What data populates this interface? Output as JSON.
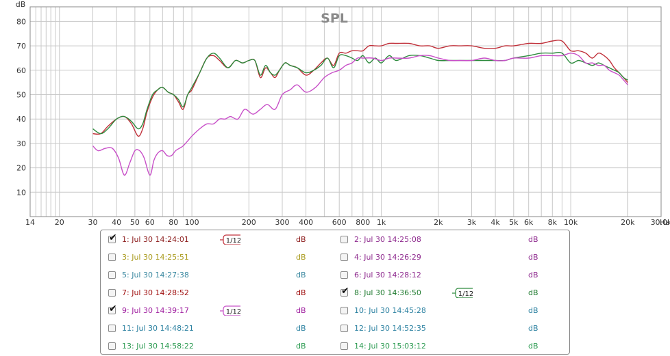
{
  "chart_data": {
    "type": "line",
    "title": "SPL",
    "ylabel": "dB",
    "x_unit_label": "Hz",
    "x_scale": "log",
    "xlim": [
      14,
      30000
    ],
    "ylim": [
      0,
      86
    ],
    "grid": true,
    "y_ticks": [
      10,
      20,
      30,
      40,
      50,
      60,
      70,
      80
    ],
    "x_ticks": [
      {
        "v": 14,
        "label": "14"
      },
      {
        "v": 20,
        "label": "20"
      },
      {
        "v": 30,
        "label": "30"
      },
      {
        "v": 40,
        "label": "40"
      },
      {
        "v": 50,
        "label": "50"
      },
      {
        "v": 60,
        "label": "60"
      },
      {
        "v": 80,
        "label": "80"
      },
      {
        "v": 100,
        "label": "100"
      },
      {
        "v": 200,
        "label": "200"
      },
      {
        "v": 300,
        "label": "300"
      },
      {
        "v": 400,
        "label": "400"
      },
      {
        "v": 600,
        "label": "600"
      },
      {
        "v": 800,
        "label": "800"
      },
      {
        "v": 1000,
        "label": "1k"
      },
      {
        "v": 2000,
        "label": "2k"
      },
      {
        "v": 3000,
        "label": "3k"
      },
      {
        "v": 4000,
        "label": "4k"
      },
      {
        "v": 5000,
        "label": "5k"
      },
      {
        "v": 6000,
        "label": "6k"
      },
      {
        "v": 8000,
        "label": "8k"
      },
      {
        "v": 10000,
        "label": "10k"
      },
      {
        "v": 20000,
        "label": "20k"
      },
      {
        "v": 30000,
        "label": "30.0k"
      }
    ],
    "series": [
      {
        "name": "1: Jul 30 14:24:01",
        "color": "#c0303a",
        "x": [
          30,
          33,
          36,
          40,
          44,
          48,
          52,
          55,
          58,
          62,
          66,
          70,
          75,
          80,
          85,
          90,
          95,
          100,
          110,
          120,
          130,
          140,
          155,
          170,
          185,
          200,
          215,
          230,
          245,
          260,
          275,
          290,
          310,
          330,
          360,
          400,
          440,
          480,
          520,
          560,
          600,
          650,
          700,
          750,
          800,
          860,
          930,
          1000,
          1100,
          1200,
          1400,
          1600,
          1800,
          2000,
          2300,
          2600,
          3000,
          3500,
          4000,
          4500,
          5000,
          6000,
          7000,
          8000,
          9000,
          10000,
          11000,
          12000,
          13000,
          14000,
          15000,
          16000,
          17000,
          18000,
          19000,
          20000
        ],
        "y": [
          34,
          34,
          37,
          40,
          41,
          38,
          33,
          36,
          43,
          49,
          52,
          53,
          51,
          50,
          47,
          44,
          50,
          52,
          59,
          65,
          66,
          64,
          61,
          64,
          63,
          64,
          64,
          57,
          61,
          59,
          57,
          60,
          63,
          62,
          61,
          58,
          60,
          63,
          65,
          62,
          67,
          67,
          68,
          68,
          68,
          70,
          70,
          70,
          71,
          71,
          71,
          70,
          70,
          69,
          70,
          70,
          70,
          69,
          69,
          70,
          70,
          71,
          71,
          72,
          72,
          68,
          68,
          67,
          65,
          67,
          66,
          64,
          61,
          59,
          57,
          55
        ]
      },
      {
        "name": "8: Jul 30 14:36:50",
        "color": "#2e8b3e",
        "x": [
          30,
          33,
          36,
          40,
          44,
          48,
          52,
          55,
          58,
          62,
          66,
          70,
          75,
          80,
          85,
          90,
          95,
          100,
          110,
          120,
          130,
          140,
          155,
          170,
          185,
          200,
          215,
          230,
          245,
          260,
          275,
          290,
          310,
          330,
          360,
          400,
          440,
          480,
          520,
          560,
          600,
          650,
          700,
          750,
          800,
          860,
          930,
          1000,
          1100,
          1200,
          1400,
          1600,
          1800,
          2000,
          2300,
          2600,
          3000,
          3500,
          4000,
          4500,
          5000,
          6000,
          7000,
          8000,
          9000,
          10000,
          11000,
          12000,
          13000,
          14000,
          15000,
          16000,
          17000,
          18000,
          19000,
          20000
        ],
        "y": [
          36,
          34,
          36,
          40,
          41,
          39,
          36,
          38,
          44,
          50,
          52,
          53,
          51,
          50,
          48,
          45,
          50,
          53,
          59,
          65,
          67,
          65,
          61,
          64,
          63,
          64,
          64,
          58,
          62,
          59,
          58,
          60,
          63,
          62,
          61,
          59,
          60,
          62,
          65,
          61,
          66,
          66,
          65,
          64,
          66,
          63,
          65,
          63,
          66,
          64,
          66,
          66,
          65,
          64,
          64,
          64,
          64,
          64,
          64,
          64,
          65,
          66,
          67,
          67,
          67,
          63,
          64,
          63,
          62,
          63,
          62,
          61,
          60,
          59,
          57,
          56
        ]
      },
      {
        "name": "9: Jul 30 14:39:17",
        "color": "#c850c8",
        "x": [
          30,
          32,
          35,
          38,
          41,
          44,
          47,
          50,
          53,
          56,
          60,
          63,
          66,
          70,
          74,
          78,
          82,
          86,
          90,
          95,
          100,
          110,
          120,
          130,
          140,
          150,
          160,
          175,
          190,
          210,
          230,
          250,
          275,
          300,
          330,
          360,
          400,
          450,
          500,
          550,
          600,
          650,
          700,
          750,
          800,
          900,
          1000,
          1100,
          1200,
          1400,
          1600,
          1800,
          2000,
          2300,
          2600,
          3000,
          3500,
          4000,
          4500,
          5000,
          6000,
          7000,
          8000,
          9000,
          10000,
          11000,
          12000,
          13000,
          14000,
          15000,
          16000,
          17000,
          18000,
          19000,
          20000
        ],
        "y": [
          29,
          27,
          28,
          28,
          24,
          17,
          22,
          27,
          27,
          24,
          17,
          23,
          26,
          27,
          25,
          25,
          27,
          28,
          29,
          31,
          33,
          36,
          38,
          38,
          40,
          40,
          41,
          40,
          44,
          42,
          44,
          46,
          44,
          50,
          52,
          54,
          51,
          53,
          57,
          59,
          60,
          62,
          63,
          65,
          65,
          65,
          64,
          65,
          65,
          65,
          66,
          66,
          65,
          64,
          64,
          64,
          65,
          64,
          64,
          65,
          65,
          66,
          66,
          66,
          67,
          66,
          63,
          63,
          62,
          62,
          60,
          59,
          58,
          56,
          54
        ]
      }
    ]
  },
  "legend": [
    {
      "label": "1: Jul 30 14:24:01",
      "unit": "dB",
      "color": "#8b1a1a",
      "checked": true,
      "smoothing": "1/12",
      "smooth_color": "#c0303a"
    },
    {
      "label": "2: Jul 30 14:25:08",
      "unit": "dB",
      "color": "#8e2a8e",
      "checked": false
    },
    {
      "label": "3: Jul 30 14:25:51",
      "unit": "dB",
      "color": "#a99a1c",
      "checked": false
    },
    {
      "label": "4: Jul 30 14:26:29",
      "unit": "dB",
      "color": "#8e2a8e",
      "checked": false
    },
    {
      "label": "5: Jul 30 14:27:38",
      "unit": "dB",
      "color": "#3a88a0",
      "checked": false
    },
    {
      "label": "6: Jul 30 14:28:12",
      "unit": "dB",
      "color": "#8e2a8e",
      "checked": false
    },
    {
      "label": "7: Jul 30 14:28:52",
      "unit": "dB",
      "color": "#a01010",
      "checked": false
    },
    {
      "label": "8: Jul 30 14:36:50",
      "unit": "dB",
      "color": "#1e7a2e",
      "checked": true,
      "smoothing": "1/12",
      "smooth_color": "#2e8b3e"
    },
    {
      "label": "9: Jul 30 14:39:17",
      "unit": "dB",
      "color": "#a020a0",
      "checked": true,
      "smoothing": "1/12",
      "smooth_color": "#c850c8"
    },
    {
      "label": "10: Jul 30 14:45:28",
      "unit": "dB",
      "color": "#2a80a0",
      "checked": false
    },
    {
      "label": "11: Jul 30 14:48:21",
      "unit": "dB",
      "color": "#2a80a0",
      "checked": false
    },
    {
      "label": "12: Jul 30 14:52:35",
      "unit": "dB",
      "color": "#2a80a0",
      "checked": false
    },
    {
      "label": "13: Jul 30 14:58:22",
      "unit": "dB",
      "color": "#2a9a50",
      "checked": false
    },
    {
      "label": "14: Jul 30 15:03:12",
      "unit": "dB",
      "color": "#2a9a50",
      "checked": false
    }
  ]
}
